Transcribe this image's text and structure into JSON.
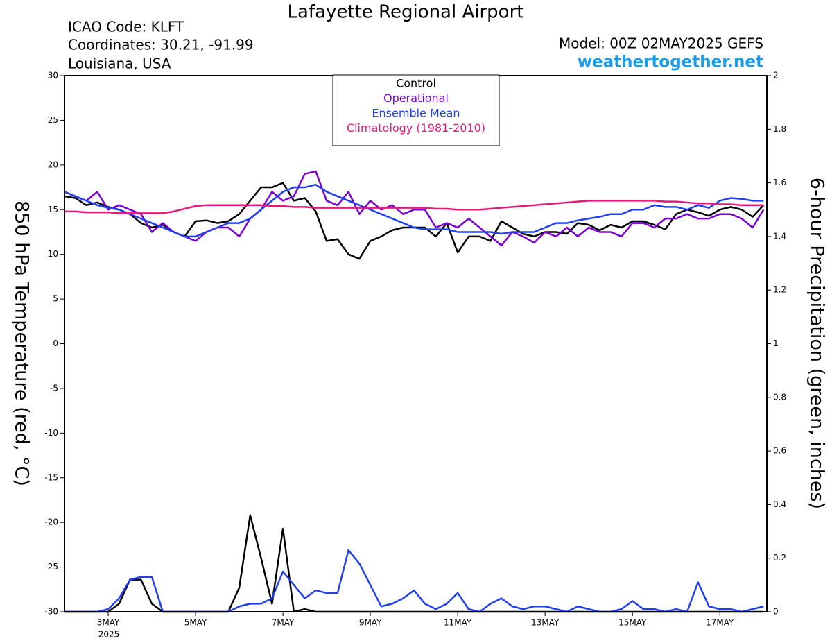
{
  "chart_data": {
    "type": "line",
    "title": "Lafayette Regional Airport",
    "info_left": [
      "ICAO Code: KLFT",
      "Coordinates: 30.21, -91.99",
      "Louisiana, USA"
    ],
    "model": "Model: 00Z 02MAY2025 GEFS",
    "site": "weathertogether.net",
    "ylabel": "850 hPa Temperature (red, °C)",
    "y2label": "6-hour Precipitation (green, inches)",
    "x_year": "2025",
    "grid": false,
    "legend_position": "top",
    "x": [
      0,
      1,
      2,
      3,
      4,
      5,
      6,
      7,
      8,
      9,
      10,
      11,
      12,
      13,
      14,
      15,
      16,
      17,
      18,
      19,
      20,
      21,
      22,
      23,
      24,
      25,
      26,
      27,
      28,
      29,
      30,
      31,
      32,
      33,
      34,
      35,
      36,
      37,
      38,
      39,
      40,
      41,
      42,
      43,
      44,
      45,
      46,
      47,
      48,
      49,
      50,
      51,
      52,
      53,
      54,
      55,
      56,
      57,
      58,
      59,
      60,
      61,
      62,
      63,
      64
    ],
    "xlim": [
      0,
      64.3
    ],
    "xticks": [
      {
        "value": 4,
        "label": "3MAY"
      },
      {
        "value": 12,
        "label": "5MAY"
      },
      {
        "value": 20,
        "label": "7MAY"
      },
      {
        "value": 28,
        "label": "9MAY"
      },
      {
        "value": 36,
        "label": "11MAY"
      },
      {
        "value": 44,
        "label": "13MAY"
      },
      {
        "value": 52,
        "label": "15MAY"
      },
      {
        "value": 60,
        "label": "17MAY"
      }
    ],
    "ylim": [
      -30,
      30
    ],
    "yticks": [
      -30,
      -25,
      -20,
      -15,
      -10,
      -5,
      0,
      5,
      10,
      15,
      20,
      25,
      30
    ],
    "y2lim": [
      0,
      2
    ],
    "y2ticks": [
      0,
      0.2,
      0.4,
      0.6,
      0.8,
      1,
      1.2,
      1.4,
      1.6,
      1.8,
      2
    ],
    "series": [
      {
        "name": "Control",
        "color": "#000000",
        "width": 2.5,
        "values": [
          16.5,
          16.3,
          15.5,
          15.8,
          15.3,
          15,
          14.5,
          13.5,
          13,
          13.3,
          12.5,
          12,
          13.7,
          13.8,
          13.5,
          13.7,
          14.5,
          16,
          17.5,
          17.5,
          18,
          16,
          16.3,
          14.8,
          11.5,
          11.7,
          10,
          9.5,
          11.5,
          12,
          12.7,
          13,
          13,
          13,
          12,
          13.5,
          10.2,
          12,
          12,
          11.5,
          13.7,
          13,
          12.3,
          12,
          12.5,
          12.5,
          12.3,
          13.5,
          13.3,
          12.7,
          13.3,
          13,
          13.7,
          13.7,
          13.3,
          12.8,
          14.5,
          15,
          14.7,
          14.3,
          15,
          15.3,
          15,
          14.2,
          15.5
        ]
      },
      {
        "name": "Operational",
        "color": "#7b00d4",
        "width": 2.5,
        "values": [
          17,
          16.5,
          16,
          17,
          15,
          15.5,
          15,
          14.5,
          12.5,
          13.5,
          12.5,
          12,
          11.5,
          12.5,
          13,
          13,
          12,
          14,
          15,
          17,
          16,
          16.5,
          19,
          19.3,
          16,
          15.5,
          17,
          14.5,
          16,
          15,
          15.5,
          14.5,
          15,
          15,
          13,
          13.5,
          13,
          14,
          13,
          12,
          11,
          12.5,
          12,
          11.3,
          12.5,
          12,
          13,
          12,
          13,
          12.5,
          12.5,
          12,
          13.5,
          13.5,
          13,
          14,
          14,
          14.5,
          14,
          14,
          14.5,
          14.5,
          14,
          13,
          15
        ]
      },
      {
        "name": "Ensemble Mean",
        "color": "#2040f0",
        "width": 2.5,
        "values": [
          17,
          16.5,
          16,
          15.5,
          15.2,
          15,
          14.5,
          14,
          13.5,
          13,
          12.5,
          12,
          12,
          12.5,
          13,
          13.5,
          13.5,
          14,
          15,
          16,
          17,
          17.5,
          17.5,
          17.8,
          17,
          16.5,
          16,
          15.5,
          15,
          14.5,
          14,
          13.5,
          13,
          12.8,
          12.8,
          12.8,
          12.5,
          12.5,
          12.5,
          12.5,
          12.3,
          12.5,
          12.5,
          12.5,
          13,
          13.5,
          13.5,
          13.8,
          14,
          14.2,
          14.5,
          14.5,
          15,
          15,
          15.5,
          15.3,
          15.3,
          15,
          15.5,
          15.2,
          16,
          16.3,
          16.2,
          16,
          16
        ]
      },
      {
        "name": "Climatology (1981-2010)",
        "color": "#e8187a",
        "width": 2.5,
        "values": [
          14.8,
          14.8,
          14.7,
          14.7,
          14.7,
          14.6,
          14.6,
          14.6,
          14.6,
          14.6,
          14.8,
          15.1,
          15.4,
          15.5,
          15.5,
          15.5,
          15.5,
          15.5,
          15.5,
          15.4,
          15.4,
          15.3,
          15.3,
          15.2,
          15.2,
          15.2,
          15.2,
          15.2,
          15.2,
          15.2,
          15.2,
          15.2,
          15.2,
          15.2,
          15.1,
          15.1,
          15,
          15,
          15,
          15.1,
          15.2,
          15.3,
          15.4,
          15.5,
          15.6,
          15.7,
          15.8,
          15.9,
          16,
          16,
          16,
          16,
          16,
          16,
          16,
          15.9,
          15.9,
          15.8,
          15.7,
          15.7,
          15.6,
          15.6,
          15.5,
          15.5,
          15.5
        ]
      },
      {
        "axis": "y2",
        "color": "#000000",
        "width": 2.5,
        "values": [
          0,
          0,
          0,
          0,
          0,
          0.03,
          0.12,
          0.12,
          0.03,
          0,
          0,
          0,
          0,
          0,
          0,
          0,
          0.09,
          0.36,
          0.2,
          0.03,
          0.31,
          0,
          0.01,
          0,
          0,
          0,
          0,
          0,
          0,
          0,
          0,
          0,
          0,
          0,
          0,
          0,
          0,
          0,
          0,
          0,
          0,
          0,
          0,
          0,
          0,
          0,
          0,
          0,
          0,
          0,
          0,
          0,
          0,
          0,
          0,
          0,
          0,
          0,
          0,
          0,
          0,
          0,
          0,
          0,
          0
        ]
      },
      {
        "axis": "y2",
        "color": "#2040f0",
        "width": 2.5,
        "values": [
          0,
          0,
          0,
          0,
          0.01,
          0.05,
          0.12,
          0.13,
          0.13,
          0,
          0,
          0,
          0,
          0,
          0,
          0,
          0.02,
          0.03,
          0.03,
          0.05,
          0.15,
          0.1,
          0.05,
          0.08,
          0.07,
          0.07,
          0.23,
          0.18,
          0.1,
          0.02,
          0.03,
          0.05,
          0.08,
          0.03,
          0.01,
          0.03,
          0.07,
          0.01,
          0,
          0.03,
          0.05,
          0.02,
          0.01,
          0.02,
          0.02,
          0.01,
          0,
          0.02,
          0.01,
          0,
          0,
          0.01,
          0.04,
          0.01,
          0.01,
          0,
          0.01,
          0,
          0.11,
          0.02,
          0.01,
          0.01,
          0,
          0.01,
          0.02
        ]
      }
    ]
  }
}
